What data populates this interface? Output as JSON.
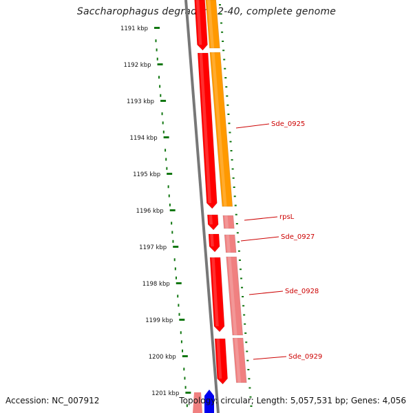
{
  "title": "Saccharophagus degradans 2-40, complete genome",
  "footer": {
    "accession": "Accession: NC_007912",
    "summary": "Topology: circular; Length: 5,057,531 bp; Genes: 4,056"
  },
  "colors": {
    "tick": "#117711",
    "backbone": "#777777",
    "cds_red": "#ff0000",
    "cds_red_dark": "#b00000",
    "cds_orange": "#ff9900",
    "cds_pink": "#f08080",
    "cds_blue": "#0000ee",
    "label": "#cc0000"
  },
  "scale": {
    "unit": "kbp",
    "ticks": [
      "1191 kbp",
      "1192 kbp",
      "1193 kbp",
      "1194 kbp",
      "1195 kbp",
      "1196 kbp",
      "1197 kbp",
      "1198 kbp",
      "1199 kbp",
      "1200 kbp",
      "1201 kbp"
    ]
  },
  "gene_labels": [
    "Sde_0925",
    "rpsL",
    "Sde_0927",
    "Sde_0928",
    "Sde_0929"
  ]
}
